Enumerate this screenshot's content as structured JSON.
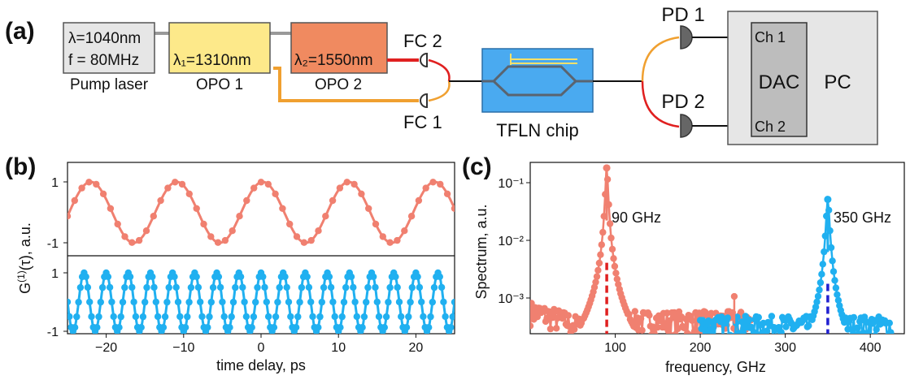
{
  "panel_labels": {
    "a": "(a)",
    "b": "(b)",
    "c": "(c)"
  },
  "schematic": {
    "pump": {
      "line1": "λ=1040nm",
      "line2": "f = 80MHz",
      "caption": "Pump laser",
      "fill": "#e6e6e6"
    },
    "opo1": {
      "label": "λ₁=1310nm",
      "caption": "OPO 1",
      "fill": "#fde98a"
    },
    "opo2": {
      "label": "λ₂=1550nm",
      "caption": "OPO 2",
      "fill": "#f08a60"
    },
    "fc2": "FC 2",
    "fc1": "FC 1",
    "chip": {
      "caption": "TFLN chip",
      "fill": "#4aaaf0"
    },
    "pd1": "PD 1",
    "pd2": "PD 2",
    "dac": {
      "label": "DAC",
      "ch1": "Ch 1",
      "ch2": "Ch 2",
      "fill": "#bdbdbd"
    },
    "pc": {
      "label": "PC",
      "fill": "#e6e6e6"
    },
    "colors": {
      "fiber_1310": "#f0a030",
      "fiber_1550": "#e02020",
      "cable": "#111111"
    }
  },
  "chart_data": [
    {
      "type": "line",
      "panel": "(b)",
      "xlabel": "time delay, ps",
      "ylabel": "G(1)(τ), a.u.",
      "xlim": [
        -25,
        25
      ],
      "xticks": [
        "−20",
        "−10",
        "0",
        "10",
        "20"
      ],
      "yticks_top": [
        "1",
        "-1"
      ],
      "yticks_bottom": [
        "1",
        "-1"
      ],
      "series": [
        {
          "period_ps": 11.11,
          "peak_at_ps": -22.0,
          "color": "#f08070",
          "amplitude": 1
        },
        {
          "period_ps": 2.857,
          "peak_at_ps": 0.0,
          "color": "#20b0f0",
          "amplitude": 1
        }
      ]
    },
    {
      "type": "line",
      "panel": "(c)",
      "xlabel": "frequency, GHz",
      "ylabel": "Spectrum, a.u.",
      "yscale": "log",
      "xlim": [
        0,
        440
      ],
      "ylim": [
        0.0002,
        0.2
      ],
      "xticks": [
        "100",
        "200",
        "300",
        "400"
      ],
      "yticks": [
        "10⁻¹",
        "10⁻²",
        "10⁻³"
      ],
      "annotations": [
        "90 GHz",
        "350 GHz"
      ],
      "series": [
        {
          "color": "#f08070",
          "peak_x": 90,
          "peak_y": 0.16,
          "marker_y": 0.0035,
          "marker_color": "#e02020",
          "range": [
            0,
            260
          ]
        },
        {
          "color": "#20b0f0",
          "peak_x": 350,
          "peak_y": 0.045,
          "marker_y": 0.0015,
          "marker_color": "#2020d0",
          "range": [
            200,
            425
          ]
        }
      ]
    }
  ]
}
